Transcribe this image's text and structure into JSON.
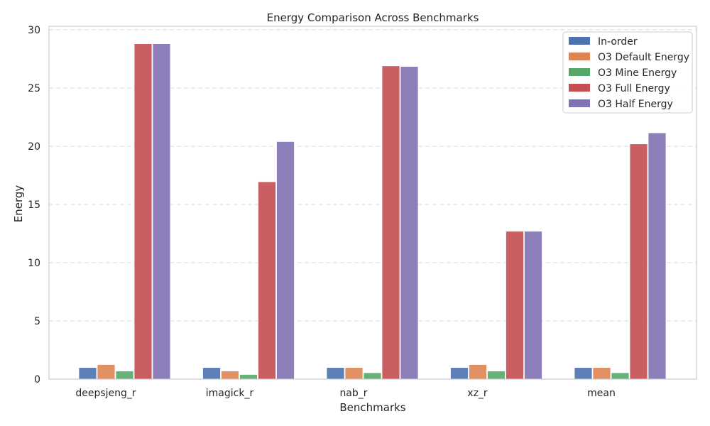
{
  "chart_data": {
    "type": "bar",
    "title": "Energy Comparison Across Benchmarks",
    "xlabel": "Benchmarks",
    "ylabel": "Energy",
    "categories": [
      "deepsjeng_r",
      "imagick_r",
      "nab_r",
      "xz_r",
      "mean"
    ],
    "ylim": [
      0,
      30
    ],
    "yticks": [
      0,
      5,
      10,
      15,
      20,
      25,
      30
    ],
    "grid": "horizontal dashed",
    "legend_position": "top-right",
    "series": [
      {
        "name": "In-order",
        "color": "#4c72b0",
        "values": [
          1.0,
          1.0,
          1.0,
          1.0,
          1.0
        ]
      },
      {
        "name": "O3 Default Energy",
        "color": "#dd8452",
        "values": [
          1.25,
          0.7,
          1.0,
          1.25,
          1.0
        ]
      },
      {
        "name": "O3 Mine Energy",
        "color": "#55a868",
        "values": [
          0.7,
          0.4,
          0.55,
          0.7,
          0.55
        ]
      },
      {
        "name": "O3 Full Energy",
        "color": "#c44e52",
        "values": [
          28.8,
          16.95,
          26.9,
          12.7,
          20.2
        ]
      },
      {
        "name": "O3 Half Energy",
        "color": "#8172b3",
        "values": [
          28.8,
          20.4,
          26.85,
          12.7,
          21.15
        ]
      }
    ]
  }
}
